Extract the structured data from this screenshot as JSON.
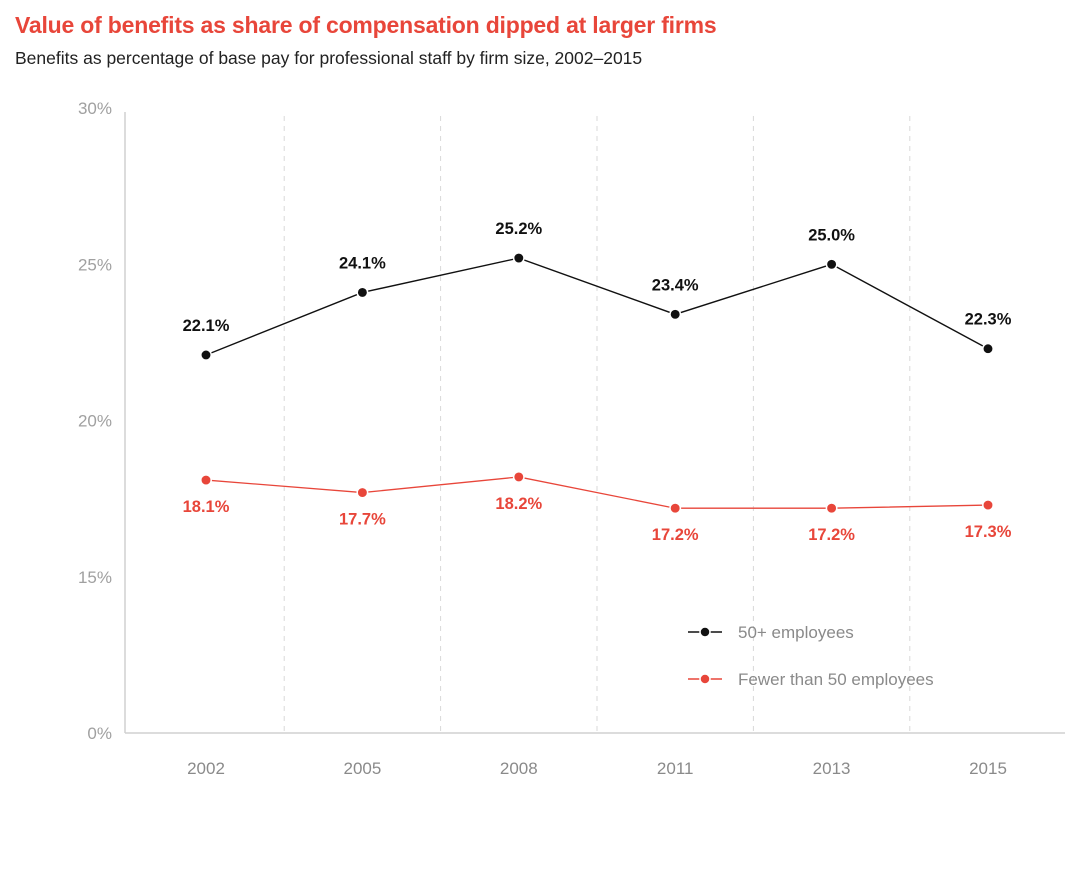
{
  "title": "Value of benefits as share of compensation dipped at larger firms",
  "subtitle": "Benefits as percentage of base pay for professional staff by firm size, 2002–2015",
  "colors": {
    "title": "#e8463a",
    "large": "#111111",
    "small": "#e8463a"
  },
  "chart_data": {
    "type": "line",
    "title": "Value of benefits as share of compensation dipped at larger firms",
    "subtitle": "Benefits as percentage of base pay for professional staff by firm size, 2002–2015",
    "categories": [
      "2002",
      "2005",
      "2008",
      "2011",
      "2013",
      "2015"
    ],
    "y_ticks": [
      {
        "value": 0,
        "label": "0%"
      },
      {
        "value": 15,
        "label": "15%"
      },
      {
        "value": 20,
        "label": "20%"
      },
      {
        "value": 25,
        "label": "25%"
      },
      {
        "value": 30,
        "label": "30%"
      }
    ],
    "y_axis_note": "axis is broken between 0% and 15%",
    "ylim": [
      0,
      30
    ],
    "grid": "vertical dashed separators between years",
    "legend_position": "bottom-right",
    "series": [
      {
        "name": "50+ employees",
        "color": "#111111",
        "values": [
          22.1,
          24.1,
          25.2,
          23.4,
          25.0,
          22.3
        ],
        "labels": [
          "22.1%",
          "24.1%",
          "25.2%",
          "23.4%",
          "25.0%",
          "22.3%"
        ],
        "label_position": "above"
      },
      {
        "name": "Fewer than 50 employees",
        "color": "#e8463a",
        "values": [
          18.1,
          17.7,
          18.2,
          17.2,
          17.2,
          17.3
        ],
        "labels": [
          "18.1%",
          "17.7%",
          "18.2%",
          "17.2%",
          "17.2%",
          "17.3%"
        ],
        "label_position": "below"
      }
    ]
  }
}
